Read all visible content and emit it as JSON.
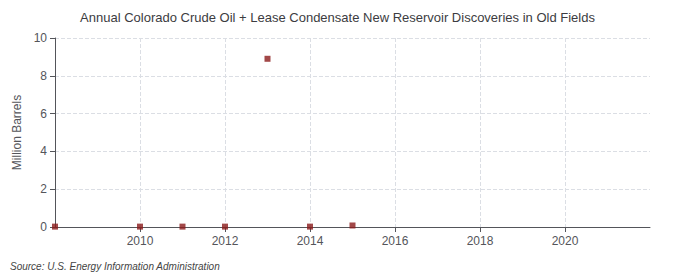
{
  "chart_data": {
    "type": "scatter",
    "title": "Annual Colorado Crude Oil + Lease Condensate New Reservoir Discoveries in Old Fields",
    "y_label": "Million Barrels",
    "annotations": [
      "Source: U.S. Energy Information Administration"
    ],
    "x": [
      2008,
      2010,
      2011,
      2012,
      2013,
      2014,
      2015
    ],
    "values": [
      0.02,
      0.02,
      0.02,
      0.02,
      8.9,
      0.02,
      0.08
    ],
    "color": "#8b1a1a",
    "marker": "square",
    "xlim": [
      2008,
      2022
    ],
    "xticks": [
      2010,
      2012,
      2014,
      2016,
      2018,
      2020
    ],
    "ylim": [
      0,
      10
    ],
    "yticks": [
      0,
      2,
      4,
      6,
      8,
      10
    ],
    "grid": true
  }
}
